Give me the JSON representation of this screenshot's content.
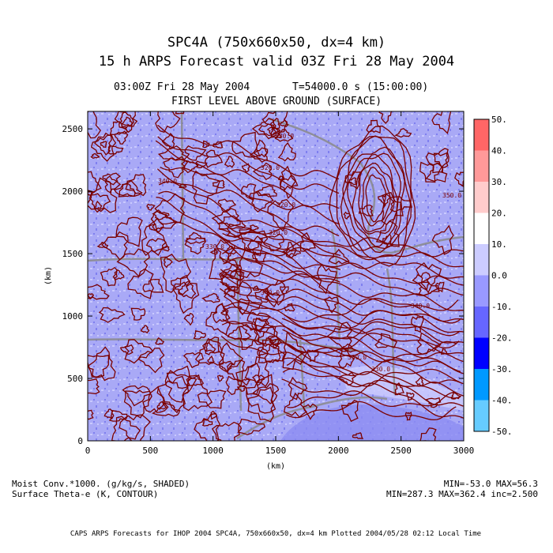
{
  "header": {
    "title_line1": "SPC4A (750x660x50, dx=4 km)",
    "title_line2": "15 h ARPS Forecast valid 03Z Fri 28 May 2004",
    "time_label": "03:00Z Fri 28 May 2004",
    "seconds_label": "T=54000.0 s (15:00:00)",
    "level_label": "FIRST LEVEL ABOVE GROUND (SURFACE)"
  },
  "axes": {
    "xlabel": "(km)",
    "ylabel": "(km)",
    "x_ticks": [
      "0",
      "500",
      "1000",
      "1500",
      "2000",
      "2500",
      "3000"
    ],
    "y_ticks": [
      "0",
      "500",
      "1000",
      "1500",
      "2000",
      "2500"
    ],
    "xlim": [
      0,
      3000
    ],
    "ylim": [
      0,
      2640
    ]
  },
  "colorbar": {
    "labels": [
      "50.",
      "40.",
      "30.",
      "20.",
      "10.",
      "0.0",
      "-10.",
      "-20.",
      "-30.",
      "-40.",
      "-50."
    ],
    "colors": [
      "#ff6666",
      "#ff9999",
      "#ffcccc",
      "#ffffff",
      "#ccccff",
      "#9999ff",
      "#6666ff",
      "#0000ff",
      "#0099ff",
      "#66ccff",
      "#00ffff"
    ]
  },
  "contour_labels": [
    "340.0",
    "320.0",
    "320.0",
    "330.0",
    "320.0",
    "330.0",
    "340.0",
    "330.0",
    "330.0",
    "340.0",
    "350.0"
  ],
  "footer": {
    "shaded_desc": "Moist Conv.*1000. (g/kg/s, SHADED)",
    "contour_desc": "Surface Theta-e (K, CONTOUR)",
    "shaded_minmax": "MIN=-53.0 MAX=56.3",
    "contour_minmax": "MIN=287.3 MAX=362.4 inc=2.500",
    "credit": "CAPS ARPS Forecasts for IHOP 2004   SPC4A, 750x660x50, dx=4 km   Plotted 2004/05/28 02:12 Local Time"
  },
  "colors": {
    "field_base": "#a9a9f6",
    "field_light": "#ccccff",
    "field_dark": "#7a7aee",
    "contour": "#7a0000",
    "map_boundary": "#8a8a8a"
  }
}
